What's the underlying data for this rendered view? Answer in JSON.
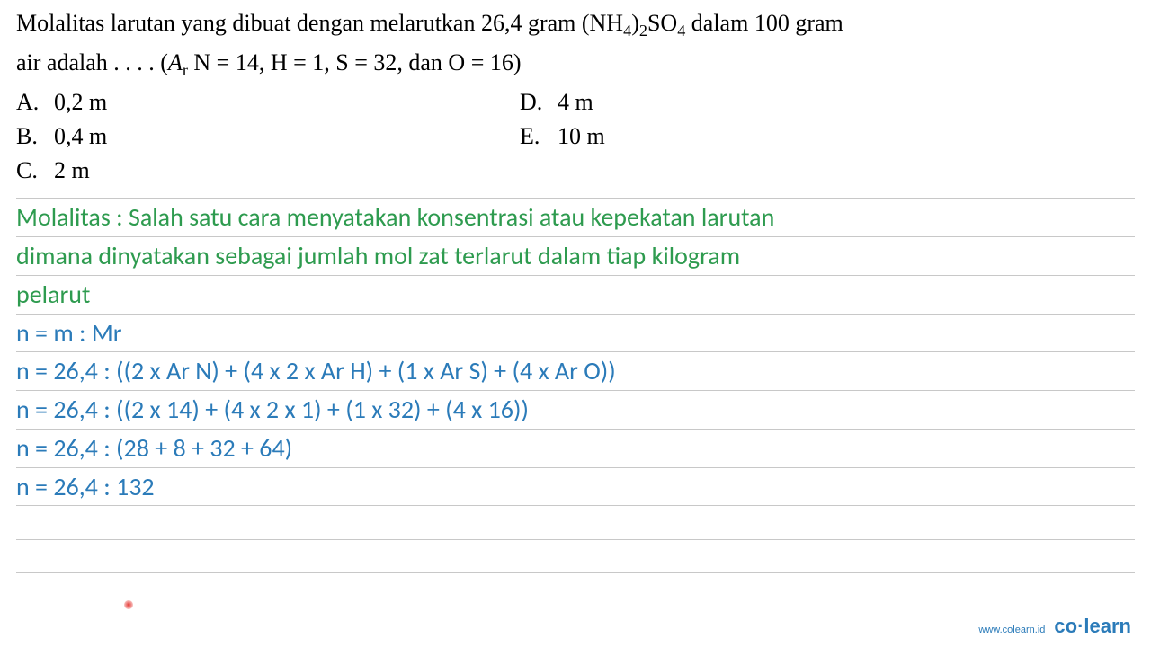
{
  "question": {
    "line1_pre": "Molalitas larutan yang dibuat dengan melarutkan 26,4 gram (NH",
    "sub1": "4",
    "mid1": ")",
    "sub2": "2",
    "mid2": "SO",
    "sub3": "4",
    "line1_post": " dalam 100 gram",
    "line2_pre": "air adalah . . . . (",
    "line2_ar": "A",
    "line2_r": "r",
    "line2_post": " N = 14, H = 1, S = 32, dan O = 16)"
  },
  "options": {
    "a": {
      "letter": "A.",
      "text": "0,2 m"
    },
    "b": {
      "letter": "B.",
      "text": "0,4 m"
    },
    "c": {
      "letter": "C.",
      "text": "2 m"
    },
    "d": {
      "letter": "D.",
      "text": "4 m"
    },
    "e": {
      "letter": "E.",
      "text": "10 m"
    }
  },
  "solution": {
    "def1": "Molalitas : Salah satu cara menyatakan konsentrasi atau kepekatan larutan",
    "def2": "dimana dinyatakan sebagai jumlah mol zat terlarut dalam tiap kilogram",
    "def3": "pelarut",
    "calc1": "n = m : Mr",
    "calc2": "n = 26,4 : ((2 x Ar N) + (4 x 2 x Ar H) + (1 x Ar S) + (4 x Ar O))",
    "calc3": "n = 26,4 : ((2 x 14) + (4 x 2 x 1) + (1 x 32) + (4 x 16))",
    "calc4": "n = 26,4 : (28 + 8 + 32 + 64)",
    "calc5": "n = 26,4 : 132"
  },
  "footer": {
    "url": "www.colearn.id",
    "logo_co": "co",
    "logo_dot": "·",
    "logo_learn": "learn"
  },
  "colors": {
    "green": "#2e9b4f",
    "blue": "#2b7bb9",
    "black": "#000000",
    "border": "#c8c8c8",
    "reddot": "#e53935"
  }
}
